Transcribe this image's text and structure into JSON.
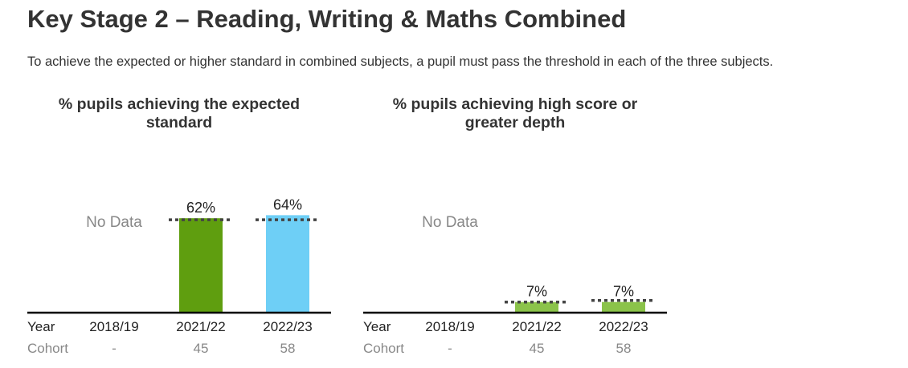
{
  "page": {
    "title": "Key Stage 2 – Reading, Writing & Maths Combined",
    "intro": "To achieve the expected or higher standard in combined subjects, a pupil must pass the threshold in each of the three subjects."
  },
  "labels": {
    "year": "Year",
    "cohort": "Cohort",
    "no_data": "No Data"
  },
  "colors": {
    "expected_2021_22": "#5f9e0f",
    "expected_2022_23": "#6ecff6",
    "high_score": "#8bc34a",
    "baseline": "#000000",
    "benchmark_dots": "#444444"
  },
  "chart_data": [
    {
      "type": "bar",
      "title": "% pupils achieving the expected standard",
      "categories": [
        "2018/19",
        "2021/22",
        "2022/23"
      ],
      "values": [
        null,
        62,
        64
      ],
      "value_labels": [
        "",
        "62%",
        "64%"
      ],
      "benchmark": [
        null,
        61,
        61
      ],
      "cohort": [
        "-",
        "45",
        "58"
      ],
      "ylim": [
        0,
        100
      ]
    },
    {
      "type": "bar",
      "title": "% pupils achieving high score or greater depth",
      "categories": [
        "2018/19",
        "2021/22",
        "2022/23"
      ],
      "values": [
        null,
        7,
        7
      ],
      "value_labels": [
        "",
        "7%",
        "7%"
      ],
      "benchmark": [
        null,
        7,
        8
      ],
      "cohort": [
        "-",
        "45",
        "58"
      ],
      "ylim": [
        0,
        100
      ]
    }
  ]
}
